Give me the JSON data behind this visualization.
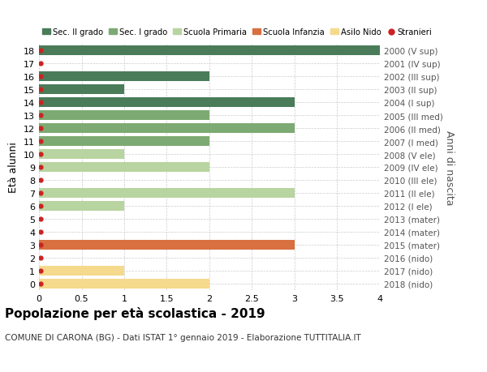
{
  "ages": [
    18,
    17,
    16,
    15,
    14,
    13,
    12,
    11,
    10,
    9,
    8,
    7,
    6,
    5,
    4,
    3,
    2,
    1,
    0
  ],
  "right_labels": [
    "2000 (V sup)",
    "2001 (IV sup)",
    "2002 (III sup)",
    "2003 (II sup)",
    "2004 (I sup)",
    "2005 (III med)",
    "2006 (II med)",
    "2007 (I med)",
    "2008 (V ele)",
    "2009 (IV ele)",
    "2010 (III ele)",
    "2011 (II ele)",
    "2012 (I ele)",
    "2013 (mater)",
    "2014 (mater)",
    "2015 (mater)",
    "2016 (nido)",
    "2017 (nido)",
    "2018 (nido)"
  ],
  "bar_values": [
    4.0,
    0,
    2.0,
    1.0,
    3.0,
    2.0,
    3.0,
    2.0,
    1.0,
    2.0,
    0,
    3.0,
    1.0,
    0,
    0,
    3.0,
    0,
    1.0,
    2.0
  ],
  "bar_colors": [
    "#4a7c59",
    "#4a7c59",
    "#4a7c59",
    "#4a7c59",
    "#4a7c59",
    "#7daa72",
    "#7daa72",
    "#7daa72",
    "#b8d4a0",
    "#b8d4a0",
    "#b8d4a0",
    "#b8d4a0",
    "#b8d4a0",
    "#d87040",
    "#d87040",
    "#d87040",
    "#f5d98c",
    "#f5d98c",
    "#f5d98c"
  ],
  "stranieri_ages": [
    18,
    17,
    16,
    15,
    14,
    13,
    12,
    11,
    10,
    9,
    8,
    7,
    6,
    5,
    4,
    3,
    2,
    1,
    0
  ],
  "legend_labels": [
    "Sec. II grado",
    "Sec. I grado",
    "Scuola Primaria",
    "Scuola Infanzia",
    "Asilo Nido",
    "Stranieri"
  ],
  "legend_colors": [
    "#4a7c59",
    "#7daa72",
    "#b8d4a0",
    "#d87040",
    "#f5d98c",
    "#cc2222"
  ],
  "title": "Popolazione per età scolastica - 2019",
  "subtitle": "COMUNE DI CARONA (BG) - Dati ISTAT 1° gennaio 2019 - Elaborazione TUTTITALIA.IT",
  "ylabel": "Età alunni",
  "right_ylabel": "Anni di nascita",
  "xlim": [
    0,
    4.0
  ],
  "xticks": [
    0,
    0.5,
    1.0,
    1.5,
    2.0,
    2.5,
    3.0,
    3.5,
    4.0
  ],
  "bg_color": "#ffffff",
  "grid_color": "#cccccc"
}
